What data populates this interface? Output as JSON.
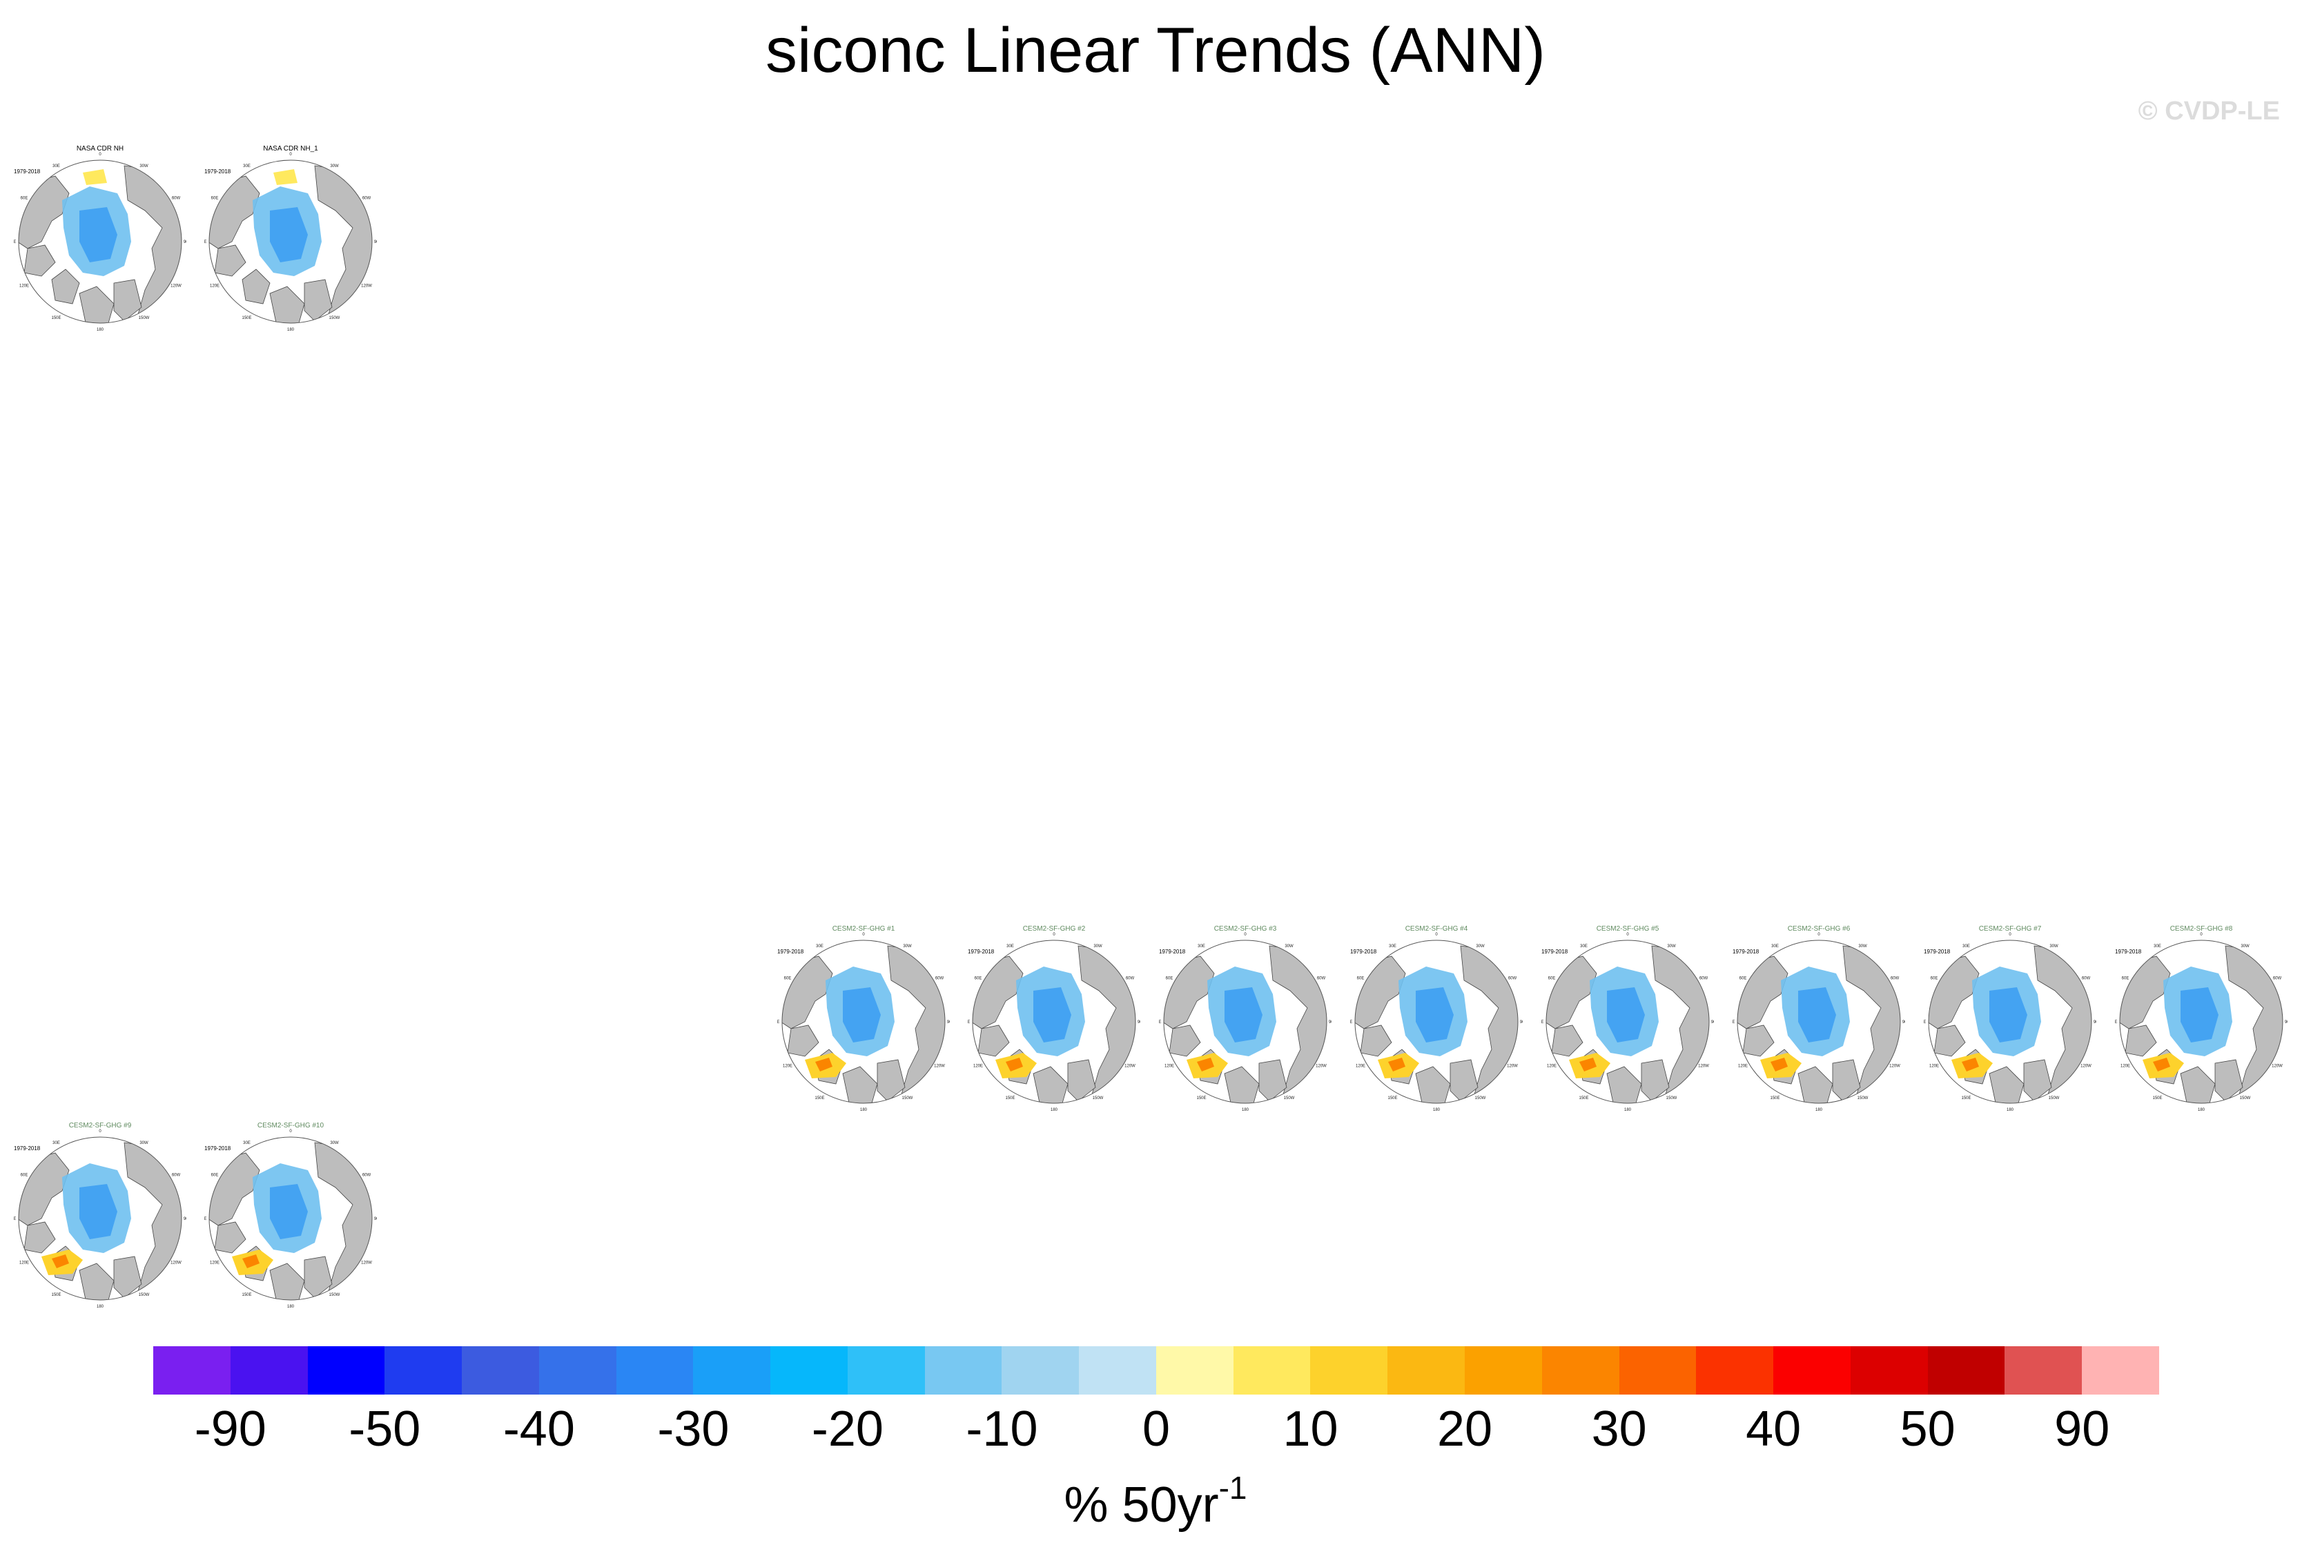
{
  "title": "siconc Linear Trends (ANN)",
  "watermark": "© CVDP-LE",
  "period_label": "1979-2018",
  "panels": [
    {
      "title": "NASA CDR NH",
      "title_color": "#000000"
    },
    {
      "title": "NASA CDR NH_1",
      "title_color": "#000000"
    },
    {
      "title": "CESM2-SF-GHG #1",
      "title_color": "#5f8a5f"
    },
    {
      "title": "CESM2-SF-GHG #2",
      "title_color": "#5f8a5f"
    },
    {
      "title": "CESM2-SF-GHG #3",
      "title_color": "#5f8a5f"
    },
    {
      "title": "CESM2-SF-GHG #4",
      "title_color": "#5f8a5f"
    },
    {
      "title": "CESM2-SF-GHG #5",
      "title_color": "#5f8a5f"
    },
    {
      "title": "CESM2-SF-GHG #6",
      "title_color": "#5f8a5f"
    },
    {
      "title": "CESM2-SF-GHG #7",
      "title_color": "#5f8a5f"
    },
    {
      "title": "CESM2-SF-GHG #8",
      "title_color": "#5f8a5f"
    },
    {
      "title": "CESM2-SF-GHG #9",
      "title_color": "#5f8a5f"
    },
    {
      "title": "CESM2-SF-GHG #10",
      "title_color": "#5f8a5f"
    }
  ],
  "map_labels": {
    "lon_180": "180",
    "lon_150w": "150W",
    "lon_150e": "150E",
    "lon_120w": "120W",
    "lon_120e": "120E",
    "lon_90w": "90W",
    "lon_90e": "90E",
    "lon_60w": "60W",
    "lon_60e": "60E",
    "lon_30w": "30W",
    "lon_30e": "30E",
    "lon_0": "0"
  },
  "colorbar": {
    "colors": [
      "#7a1ff0",
      "#4a12f0",
      "#0000ff",
      "#1f3cf0",
      "#3c5be0",
      "#3571ea",
      "#2a86f4",
      "#1a9ff8",
      "#06b7fb",
      "#2fc0f8",
      "#78c8f2",
      "#a0d4f0",
      "#c0e2f4",
      "#fff9a8",
      "#ffe95e",
      "#fdd22c",
      "#fbb812",
      "#fba100",
      "#fb8500",
      "#fb6300",
      "#fb3200",
      "#fb0000",
      "#dc0000",
      "#c00000",
      "#e05252",
      "#ffb3b3"
    ],
    "tick_labels": [
      "-90",
      "-50",
      "-40",
      "-30",
      "-20",
      "-10",
      "0",
      "10",
      "20",
      "30",
      "40",
      "50",
      "90"
    ],
    "units_main": "% 50yr",
    "units_sup": "-1"
  }
}
